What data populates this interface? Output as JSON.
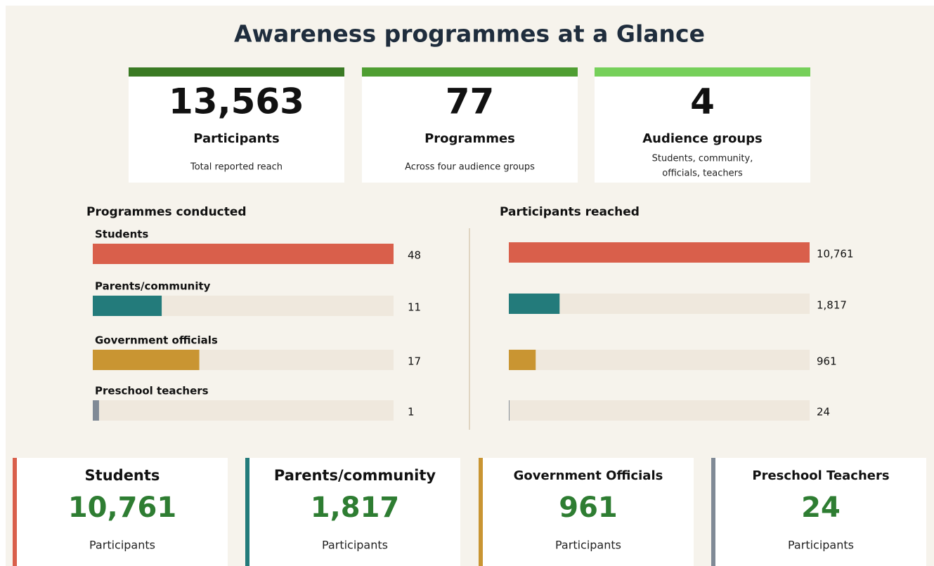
{
  "title": "Awareness programmes at a Glance",
  "kpis": [
    {
      "value": "13,563",
      "label": "Participants",
      "note": "Total reported reach",
      "color": "#3a7a24"
    },
    {
      "value": "77",
      "label": "Programmes",
      "note": "Across four audience groups",
      "color": "#4f9e32"
    },
    {
      "value": "4",
      "label": "Audience groups",
      "note": [
        "Students, community,",
        "officials, teachers"
      ],
      "color": "#76d05a"
    }
  ],
  "chart_data": [
    {
      "type": "hbar",
      "title": "Programmes conducted",
      "categories": [
        "Students",
        "Parents/community",
        "Government officials",
        "Preschool teachers"
      ],
      "values": [
        48,
        11,
        17,
        1
      ],
      "colors": [
        "#d95f4b",
        "#237b7b",
        "#c99532",
        "#808a96"
      ],
      "xlim": [
        0,
        48
      ]
    },
    {
      "type": "hbar",
      "title": "Participants reached",
      "values": [
        10761,
        1817,
        961,
        24
      ],
      "value_labels": [
        "10,761",
        "1,817",
        "961",
        "24"
      ],
      "colors": [
        "#d95f4b",
        "#237b7b",
        "#c99532",
        "#808a96"
      ],
      "xlim": [
        0,
        10761
      ]
    }
  ],
  "cards": [
    {
      "name": "Students",
      "value": "10,761",
      "unit": "Participants",
      "color": "#d95f4b"
    },
    {
      "name": "Parents/community",
      "value": "1,817",
      "unit": "Participants",
      "color": "#237b7b"
    },
    {
      "name": "Government Officials",
      "value": "961",
      "unit": "Participants",
      "color": "#c99532"
    },
    {
      "name": "Preschool Teachers",
      "value": "24",
      "unit": "Participants",
      "color": "#808a96"
    }
  ]
}
